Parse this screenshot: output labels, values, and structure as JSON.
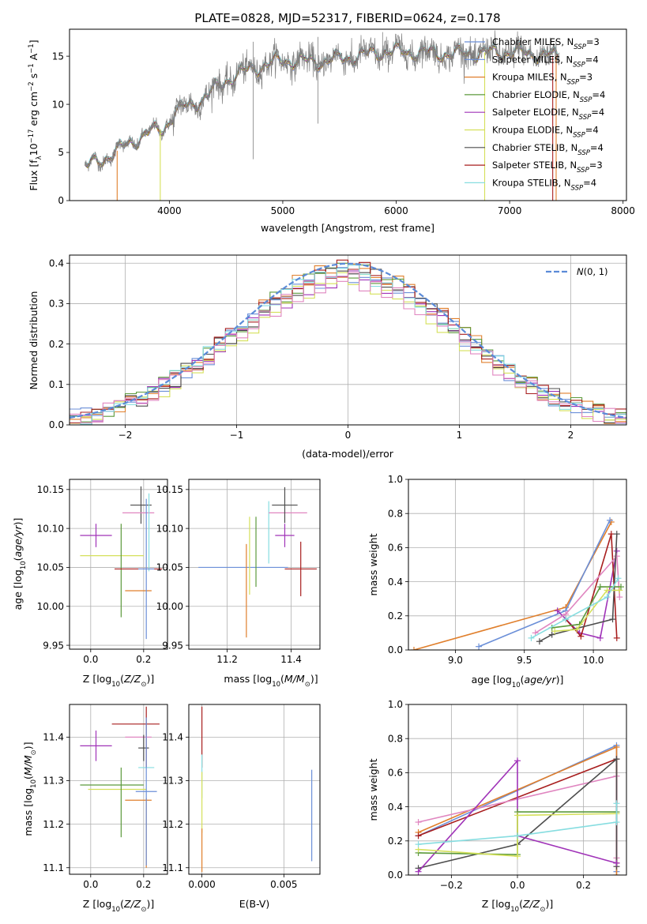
{
  "figure": {
    "title": "PLATE=0828, MJD=52317, FIBERID=0624, z=0.178"
  },
  "colors": {
    "Chabrier MILES": "#6b8fd8",
    "Salpeter MILES": "#6b8fd8",
    "Kroupa MILES": "#e07f2c",
    "Chabrier ELODIE": "#5c9a3c",
    "Salpeter ELODIE": "#a033b8",
    "Kroupa ELODIE": "#d5e05a",
    "Chabrier STELIB": "#4d4d4d",
    "Salpeter STELIB": "#a81e1e",
    "Kroupa STELIB": "#86dde0",
    "pink": "#e086c0",
    "data": "#808080",
    "gauss": "#5b8bd8"
  },
  "chart_data": [
    {
      "id": "spectrum",
      "type": "line",
      "title": "PLATE=0828, MJD=52317, FIBERID=0624, z=0.178",
      "xlabel": "wavelength [Angstrom, rest frame]",
      "ylabel": "Flux [f_λ 10^-17 erg cm^-2 s^-1 A^-1]",
      "xlim": [
        3120,
        8030
      ],
      "ylim": [
        0,
        17.8
      ],
      "xticks": [
        4000,
        5000,
        6000,
        7000,
        8000
      ],
      "yticks": [
        0,
        5,
        10,
        15
      ],
      "grid": false,
      "legend_position": "right",
      "legend": [
        "Chabrier MILES, N_SSP=3",
        "Salpeter MILES, N_SSP=4",
        "Kroupa MILES, N_SSP=3",
        "Chabrier ELODIE, N_SSP=4",
        "Salpeter ELODIE, N_SSP=4",
        "Kroupa ELODIE, N_SSP=4",
        "Chabrier STELIB, N_SSP=4",
        "Salpeter STELIB, N_SSP=3",
        "Kroupa STELIB, N_SSP=4"
      ],
      "continuum": {
        "x": [
          3250,
          3400,
          3600,
          3800,
          3950,
          4050,
          4300,
          4500,
          4700,
          5000,
          5300,
          5600,
          5900,
          6200,
          6500,
          6800,
          7100,
          7400
        ],
        "y": [
          3.5,
          4.2,
          5.6,
          7.0,
          7.5,
          9.2,
          10.6,
          12.5,
          13.6,
          14.6,
          14.4,
          14.9,
          15.5,
          15.4,
          15.2,
          15.4,
          15.4,
          15.0
        ]
      }
    },
    {
      "id": "residual_hist",
      "type": "line",
      "xlabel": "(data-model)/error",
      "ylabel": "Normed distribution",
      "xlim": [
        -2.5,
        2.5
      ],
      "ylim": [
        0,
        0.42
      ],
      "xticks": [
        -2,
        -1,
        0,
        1,
        2
      ],
      "yticks": [
        0.0,
        0.1,
        0.2,
        0.3,
        0.4
      ],
      "grid": true,
      "legend_position": "top-right",
      "legend": [
        "N(0, 1)"
      ]
    },
    {
      "id": "age_vs_Z",
      "type": "scatter",
      "xlabel": "Z [log10(Z/Z⊙)]",
      "ylabel": "age  [log10(age/yr)]",
      "xlim": [
        -0.08,
        0.29
      ],
      "ylim": [
        9.945,
        10.163
      ],
      "xticks": [
        0.0,
        0.2
      ],
      "yticks": [
        9.95,
        10.0,
        10.05,
        10.1,
        10.15
      ],
      "grid": true,
      "points": [
        {
          "x": 0.02,
          "xerr": 0.06,
          "y": 10.091,
          "yerr": 0.015,
          "c": "#a033b8"
        },
        {
          "x": 0.08,
          "xerr": 0.12,
          "y": 10.065,
          "yerr": 0.0,
          "c": "#d5e05a"
        },
        {
          "x": 0.115,
          "xerr": 0.0,
          "y": 10.046,
          "yerr": 0.06,
          "c": "#5c9a3c"
        },
        {
          "x": 0.18,
          "xerr": 0.09,
          "y": 10.048,
          "yerr": 0.0,
          "c": "#a81e1e"
        },
        {
          "x": 0.18,
          "xerr": 0.05,
          "y": 10.02,
          "yerr": 0.0,
          "c": "#e07f2c"
        },
        {
          "x": 0.19,
          "xerr": 0.04,
          "y": 10.13,
          "yerr": 0.024,
          "c": "#4d4d4d"
        },
        {
          "x": 0.18,
          "xerr": 0.06,
          "y": 10.12,
          "yerr": 0.0,
          "c": "#e086c0"
        },
        {
          "x": 0.22,
          "xerr": 0.0,
          "y": 10.095,
          "yerr": 0.05,
          "c": "#86dde0"
        },
        {
          "x": 0.21,
          "xerr": 0.03,
          "y": 10.048,
          "yerr": 0.09,
          "c": "#6b8fd8"
        }
      ]
    },
    {
      "id": "age_vs_mass",
      "type": "scatter",
      "xlabel": "mass [log10(M/M⊙)]",
      "ylabel": "",
      "xlim": [
        11.08,
        11.49
      ],
      "ylim": [
        9.945,
        10.163
      ],
      "xticks": [
        11.2,
        11.4
      ],
      "yticks": [
        9.95,
        10.0,
        10.05,
        10.1,
        10.15
      ],
      "grid": true,
      "points": [
        {
          "x": 11.25,
          "xerr": 0.14,
          "y": 10.05,
          "yerr": 0.0,
          "c": "#6b8fd8"
        },
        {
          "x": 11.26,
          "xerr": 0.0,
          "y": 10.02,
          "yerr": 0.06,
          "c": "#e07f2c"
        },
        {
          "x": 11.27,
          "xerr": 0.0,
          "y": 10.065,
          "yerr": 0.05,
          "c": "#d5e05a"
        },
        {
          "x": 11.29,
          "xerr": 0.0,
          "y": 10.07,
          "yerr": 0.045,
          "c": "#5c9a3c"
        },
        {
          "x": 11.33,
          "xerr": 0.0,
          "y": 10.095,
          "yerr": 0.04,
          "c": "#86dde0"
        },
        {
          "x": 11.39,
          "xerr": 0.06,
          "y": 10.12,
          "yerr": 0.0,
          "c": "#e086c0"
        },
        {
          "x": 11.38,
          "xerr": 0.04,
          "y": 10.13,
          "yerr": 0.023,
          "c": "#4d4d4d"
        },
        {
          "x": 11.38,
          "xerr": 0.03,
          "y": 10.091,
          "yerr": 0.015,
          "c": "#a033b8"
        },
        {
          "x": 11.43,
          "xerr": 0.05,
          "y": 10.048,
          "yerr": 0.035,
          "c": "#a81e1e"
        }
      ]
    },
    {
      "id": "mass_weight_vs_age",
      "type": "line",
      "xlabel": "age  [log10(age/yr)]",
      "ylabel": "mass weight",
      "xlim": [
        8.66,
        10.24
      ],
      "ylim": [
        0,
        1.0
      ],
      "xticks": [
        9.0,
        9.5,
        10.0
      ],
      "yticks": [
        0.0,
        0.2,
        0.4,
        0.6,
        0.8,
        1.0
      ],
      "grid": true,
      "series": [
        {
          "c": "#e07f2c",
          "x": [
            8.7,
            9.8,
            10.13
          ],
          "y": [
            0.0,
            0.25,
            0.75
          ]
        },
        {
          "c": "#6b8fd8",
          "x": [
            9.17,
            9.8,
            10.12
          ],
          "y": [
            0.02,
            0.23,
            0.76
          ]
        },
        {
          "c": "#a033b8",
          "x": [
            9.74,
            9.9,
            10.05,
            10.17
          ],
          "y": [
            0.23,
            0.1,
            0.07,
            0.58
          ]
        },
        {
          "c": "#a81e1e",
          "x": [
            9.8,
            9.91,
            10.13,
            10.17
          ],
          "y": [
            0.18,
            0.08,
            0.68,
            0.07
          ]
        },
        {
          "c": "#e086c0",
          "x": [
            9.58,
            9.8,
            10.17,
            10.19
          ],
          "y": [
            0.1,
            0.21,
            0.55,
            0.31
          ]
        },
        {
          "c": "#4d4d4d",
          "x": [
            9.61,
            9.7,
            10.14,
            10.17
          ],
          "y": [
            0.05,
            0.09,
            0.18,
            0.68
          ]
        },
        {
          "c": "#5c9a3c",
          "x": [
            9.7,
            9.9,
            10.05,
            10.2
          ],
          "y": [
            0.13,
            0.15,
            0.37,
            0.37
          ]
        },
        {
          "c": "#d5e05a",
          "x": [
            9.72,
            9.88,
            10.1,
            10.19
          ],
          "y": [
            0.11,
            0.12,
            0.35,
            0.35
          ]
        },
        {
          "c": "#86dde0",
          "x": [
            9.55,
            9.8,
            10.1,
            10.18
          ],
          "y": [
            0.07,
            0.18,
            0.31,
            0.42
          ]
        }
      ]
    },
    {
      "id": "mass_vs_Z",
      "type": "scatter",
      "xlabel": "Z [log10(Z/Z⊙)]",
      "ylabel": "mass [log10(M/M⊙)]",
      "xlim": [
        -0.08,
        0.29
      ],
      "ylim": [
        11.085,
        11.475
      ],
      "xticks": [
        0.0,
        0.2
      ],
      "yticks": [
        11.1,
        11.2,
        11.3,
        11.4
      ],
      "grid": true,
      "points": [
        {
          "x": 0.02,
          "xerr": 0.06,
          "y": 11.38,
          "yerr": 0.035,
          "c": "#a033b8"
        },
        {
          "x": 0.1,
          "xerr": 0.11,
          "y": 11.28,
          "yerr": 0.0,
          "c": "#d5e05a"
        },
        {
          "x": 0.115,
          "xerr": 0.0,
          "y": 11.25,
          "yerr": 0.08,
          "c": "#5c9a3c"
        },
        {
          "x": 0.08,
          "xerr": 0.12,
          "y": 11.29,
          "yerr": 0.0,
          "c": "#5c9a3c"
        },
        {
          "x": 0.17,
          "xerr": 0.09,
          "y": 11.43,
          "yerr": 0.0,
          "c": "#a81e1e"
        },
        {
          "x": 0.21,
          "xerr": 0.0,
          "y": 11.4,
          "yerr": 0.07,
          "c": "#a81e1e"
        },
        {
          "x": 0.18,
          "xerr": 0.05,
          "y": 11.4,
          "yerr": 0.0,
          "c": "#e086c0"
        },
        {
          "x": 0.2,
          "xerr": 0.02,
          "y": 11.375,
          "yerr": 0.03,
          "c": "#4d4d4d"
        },
        {
          "x": 0.21,
          "xerr": 0.03,
          "y": 11.33,
          "yerr": 0.0,
          "c": "#86dde0"
        },
        {
          "x": 0.18,
          "xerr": 0.05,
          "y": 11.255,
          "yerr": 0.0,
          "c": "#e07f2c"
        },
        {
          "x": 0.21,
          "xerr": 0.0,
          "y": 11.18,
          "yerr": 0.08,
          "c": "#e07f2c"
        },
        {
          "x": 0.21,
          "xerr": 0.04,
          "y": 11.275,
          "yerr": 0.17,
          "c": "#6b8fd8"
        }
      ]
    },
    {
      "id": "mass_vs_EBV",
      "type": "scatter",
      "xlabel": "E(B-V)",
      "ylabel": "",
      "xlim": [
        -0.0008,
        0.0072
      ],
      "ylim": [
        11.085,
        11.475
      ],
      "xticks": [
        0.0,
        0.005
      ],
      "xticklabels": [
        "0.000",
        "0.005"
      ],
      "yticks": [
        11.1,
        11.2,
        11.3,
        11.4
      ],
      "grid": true,
      "points": [
        {
          "x": 0.0,
          "xerr": 0.0,
          "y": 11.4,
          "yerr": 0.07,
          "c": "#a81e1e"
        },
        {
          "x": 0.0,
          "xerr": 0.0,
          "y": 11.31,
          "yerr": 0.05,
          "c": "#86dde0"
        },
        {
          "x": 0.0,
          "xerr": 0.0,
          "y": 11.25,
          "yerr": 0.07,
          "c": "#d5e05a"
        },
        {
          "x": 0.0,
          "xerr": 0.0,
          "y": 11.14,
          "yerr": 0.05,
          "c": "#e07f2c"
        },
        {
          "x": 0.0067,
          "xerr": 0.0,
          "y": 11.22,
          "yerr": 0.105,
          "c": "#6b8fd8"
        }
      ]
    },
    {
      "id": "mass_weight_vs_Z",
      "type": "line",
      "xlabel": "Z [log10(Z/Z⊙)]",
      "ylabel": "mass weight",
      "xlim": [
        -0.33,
        0.33
      ],
      "ylim": [
        0,
        1.0
      ],
      "xticks": [
        -0.2,
        0.0,
        0.2
      ],
      "yticks": [
        0.0,
        0.2,
        0.4,
        0.6,
        0.8,
        1.0
      ],
      "grid": true,
      "series": [
        {
          "c": "#6b8fd8",
          "x": [
            -0.3,
            0.3,
            0.3
          ],
          "y": [
            0.23,
            0.76,
            0.02
          ]
        },
        {
          "c": "#e07f2c",
          "x": [
            -0.3,
            0.3,
            0.3
          ],
          "y": [
            0.25,
            0.75,
            0.0
          ]
        },
        {
          "c": "#a81e1e",
          "x": [
            -0.3,
            0.3,
            0.3
          ],
          "y": [
            0.23,
            0.68,
            0.07
          ]
        },
        {
          "c": "#e086c0",
          "x": [
            -0.3,
            0.3,
            0.3
          ],
          "y": [
            0.31,
            0.58,
            0.1
          ]
        },
        {
          "c": "#4d4d4d",
          "x": [
            -0.3,
            0.0,
            0.3,
            0.3
          ],
          "y": [
            0.04,
            0.18,
            0.68,
            0.05
          ]
        },
        {
          "c": "#a033b8",
          "x": [
            -0.3,
            0.0,
            0.0,
            0.3
          ],
          "y": [
            0.02,
            0.67,
            0.23,
            0.07
          ]
        },
        {
          "c": "#5c9a3c",
          "x": [
            -0.3,
            0.0,
            0.0,
            0.3
          ],
          "y": [
            0.13,
            0.12,
            0.37,
            0.37
          ]
        },
        {
          "c": "#d5e05a",
          "x": [
            -0.3,
            0.0,
            0.0,
            0.3
          ],
          "y": [
            0.15,
            0.11,
            0.35,
            0.36
          ]
        },
        {
          "c": "#86dde0",
          "x": [
            -0.3,
            0.0,
            0.3,
            0.3
          ],
          "y": [
            0.18,
            0.23,
            0.31,
            0.42
          ]
        }
      ]
    }
  ]
}
